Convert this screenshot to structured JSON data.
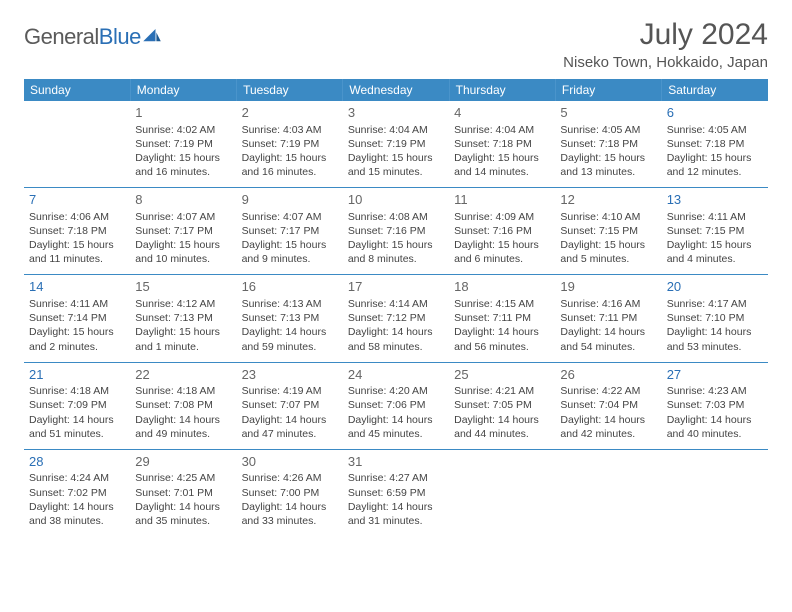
{
  "colors": {
    "header_bg": "#3b8ac4",
    "header_text": "#ffffff",
    "row_divider": "#3b8ac4",
    "body_text": "#444444",
    "daynum_text": "#666666",
    "weekend_daynum": "#2a6fb5",
    "title_text": "#555555",
    "logo_gray": "#5a5a5a",
    "logo_blue": "#2a6fb5",
    "background": "#ffffff"
  },
  "logo": {
    "part1": "General",
    "part2": "Blue"
  },
  "title": "July 2024",
  "location": "Niseko Town, Hokkaido, Japan",
  "weekdays": [
    "Sunday",
    "Monday",
    "Tuesday",
    "Wednesday",
    "Thursday",
    "Friday",
    "Saturday"
  ],
  "cells": [
    {
      "day": "",
      "sunrise": "",
      "sunset": "",
      "daylight": ""
    },
    {
      "day": "1",
      "sunrise": "Sunrise: 4:02 AM",
      "sunset": "Sunset: 7:19 PM",
      "daylight": "Daylight: 15 hours and 16 minutes."
    },
    {
      "day": "2",
      "sunrise": "Sunrise: 4:03 AM",
      "sunset": "Sunset: 7:19 PM",
      "daylight": "Daylight: 15 hours and 16 minutes."
    },
    {
      "day": "3",
      "sunrise": "Sunrise: 4:04 AM",
      "sunset": "Sunset: 7:19 PM",
      "daylight": "Daylight: 15 hours and 15 minutes."
    },
    {
      "day": "4",
      "sunrise": "Sunrise: 4:04 AM",
      "sunset": "Sunset: 7:18 PM",
      "daylight": "Daylight: 15 hours and 14 minutes."
    },
    {
      "day": "5",
      "sunrise": "Sunrise: 4:05 AM",
      "sunset": "Sunset: 7:18 PM",
      "daylight": "Daylight: 15 hours and 13 minutes."
    },
    {
      "day": "6",
      "sunrise": "Sunrise: 4:05 AM",
      "sunset": "Sunset: 7:18 PM",
      "daylight": "Daylight: 15 hours and 12 minutes."
    },
    {
      "day": "7",
      "sunrise": "Sunrise: 4:06 AM",
      "sunset": "Sunset: 7:18 PM",
      "daylight": "Daylight: 15 hours and 11 minutes."
    },
    {
      "day": "8",
      "sunrise": "Sunrise: 4:07 AM",
      "sunset": "Sunset: 7:17 PM",
      "daylight": "Daylight: 15 hours and 10 minutes."
    },
    {
      "day": "9",
      "sunrise": "Sunrise: 4:07 AM",
      "sunset": "Sunset: 7:17 PM",
      "daylight": "Daylight: 15 hours and 9 minutes."
    },
    {
      "day": "10",
      "sunrise": "Sunrise: 4:08 AM",
      "sunset": "Sunset: 7:16 PM",
      "daylight": "Daylight: 15 hours and 8 minutes."
    },
    {
      "day": "11",
      "sunrise": "Sunrise: 4:09 AM",
      "sunset": "Sunset: 7:16 PM",
      "daylight": "Daylight: 15 hours and 6 minutes."
    },
    {
      "day": "12",
      "sunrise": "Sunrise: 4:10 AM",
      "sunset": "Sunset: 7:15 PM",
      "daylight": "Daylight: 15 hours and 5 minutes."
    },
    {
      "day": "13",
      "sunrise": "Sunrise: 4:11 AM",
      "sunset": "Sunset: 7:15 PM",
      "daylight": "Daylight: 15 hours and 4 minutes."
    },
    {
      "day": "14",
      "sunrise": "Sunrise: 4:11 AM",
      "sunset": "Sunset: 7:14 PM",
      "daylight": "Daylight: 15 hours and 2 minutes."
    },
    {
      "day": "15",
      "sunrise": "Sunrise: 4:12 AM",
      "sunset": "Sunset: 7:13 PM",
      "daylight": "Daylight: 15 hours and 1 minute."
    },
    {
      "day": "16",
      "sunrise": "Sunrise: 4:13 AM",
      "sunset": "Sunset: 7:13 PM",
      "daylight": "Daylight: 14 hours and 59 minutes."
    },
    {
      "day": "17",
      "sunrise": "Sunrise: 4:14 AM",
      "sunset": "Sunset: 7:12 PM",
      "daylight": "Daylight: 14 hours and 58 minutes."
    },
    {
      "day": "18",
      "sunrise": "Sunrise: 4:15 AM",
      "sunset": "Sunset: 7:11 PM",
      "daylight": "Daylight: 14 hours and 56 minutes."
    },
    {
      "day": "19",
      "sunrise": "Sunrise: 4:16 AM",
      "sunset": "Sunset: 7:11 PM",
      "daylight": "Daylight: 14 hours and 54 minutes."
    },
    {
      "day": "20",
      "sunrise": "Sunrise: 4:17 AM",
      "sunset": "Sunset: 7:10 PM",
      "daylight": "Daylight: 14 hours and 53 minutes."
    },
    {
      "day": "21",
      "sunrise": "Sunrise: 4:18 AM",
      "sunset": "Sunset: 7:09 PM",
      "daylight": "Daylight: 14 hours and 51 minutes."
    },
    {
      "day": "22",
      "sunrise": "Sunrise: 4:18 AM",
      "sunset": "Sunset: 7:08 PM",
      "daylight": "Daylight: 14 hours and 49 minutes."
    },
    {
      "day": "23",
      "sunrise": "Sunrise: 4:19 AM",
      "sunset": "Sunset: 7:07 PM",
      "daylight": "Daylight: 14 hours and 47 minutes."
    },
    {
      "day": "24",
      "sunrise": "Sunrise: 4:20 AM",
      "sunset": "Sunset: 7:06 PM",
      "daylight": "Daylight: 14 hours and 45 minutes."
    },
    {
      "day": "25",
      "sunrise": "Sunrise: 4:21 AM",
      "sunset": "Sunset: 7:05 PM",
      "daylight": "Daylight: 14 hours and 44 minutes."
    },
    {
      "day": "26",
      "sunrise": "Sunrise: 4:22 AM",
      "sunset": "Sunset: 7:04 PM",
      "daylight": "Daylight: 14 hours and 42 minutes."
    },
    {
      "day": "27",
      "sunrise": "Sunrise: 4:23 AM",
      "sunset": "Sunset: 7:03 PM",
      "daylight": "Daylight: 14 hours and 40 minutes."
    },
    {
      "day": "28",
      "sunrise": "Sunrise: 4:24 AM",
      "sunset": "Sunset: 7:02 PM",
      "daylight": "Daylight: 14 hours and 38 minutes."
    },
    {
      "day": "29",
      "sunrise": "Sunrise: 4:25 AM",
      "sunset": "Sunset: 7:01 PM",
      "daylight": "Daylight: 14 hours and 35 minutes."
    },
    {
      "day": "30",
      "sunrise": "Sunrise: 4:26 AM",
      "sunset": "Sunset: 7:00 PM",
      "daylight": "Daylight: 14 hours and 33 minutes."
    },
    {
      "day": "31",
      "sunrise": "Sunrise: 4:27 AM",
      "sunset": "Sunset: 6:59 PM",
      "daylight": "Daylight: 14 hours and 31 minutes."
    },
    {
      "day": "",
      "sunrise": "",
      "sunset": "",
      "daylight": ""
    },
    {
      "day": "",
      "sunrise": "",
      "sunset": "",
      "daylight": ""
    },
    {
      "day": "",
      "sunrise": "",
      "sunset": "",
      "daylight": ""
    }
  ]
}
